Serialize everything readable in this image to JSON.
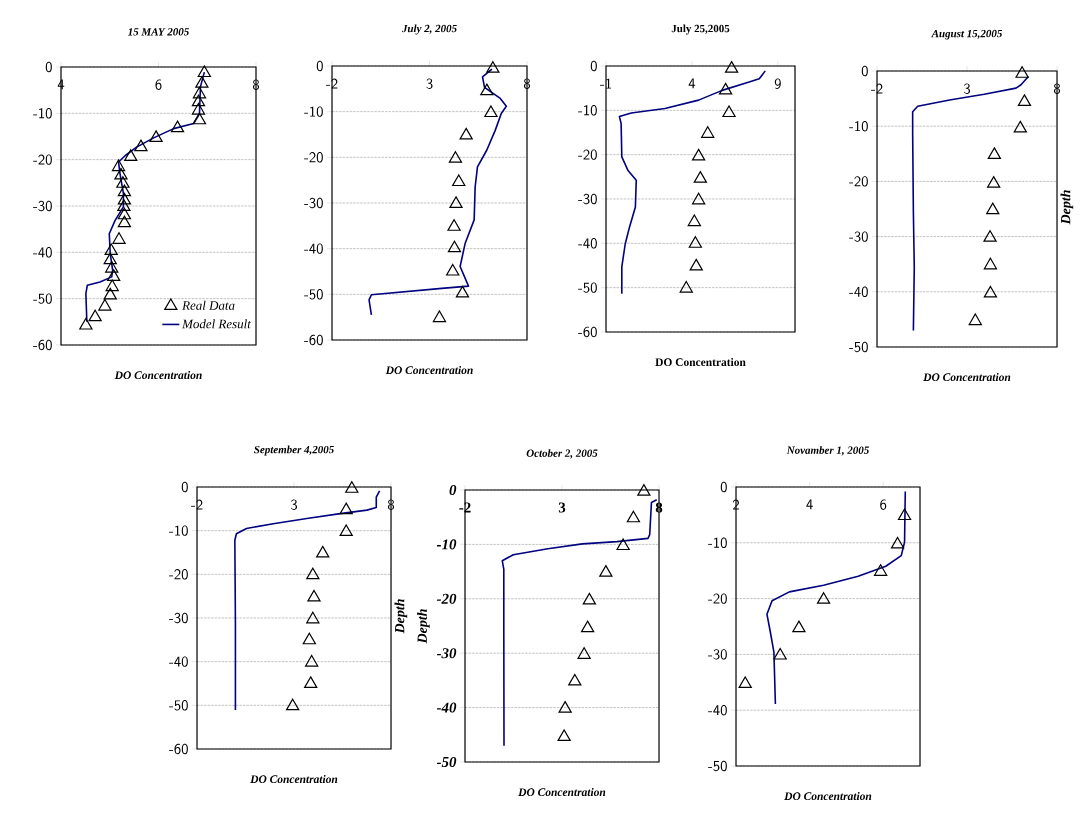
{
  "chart_data": [
    {
      "type": "scatter",
      "title": "15 MAY 2005",
      "xlabel": "DO Concentration",
      "xlim": [
        4,
        8
      ],
      "xticks": [
        4,
        6,
        8
      ],
      "ylim": [
        -60,
        0
      ],
      "yticks": [
        -60,
        -50,
        -40,
        -30,
        -20,
        -10,
        0
      ],
      "grid": "y",
      "legend": "bottom right",
      "series": [
        {
          "name": "Real Data",
          "marker": "triangle",
          "color": "#000000",
          "x": [
            6.94,
            6.89,
            6.84,
            6.82,
            6.82,
            6.84,
            6.39,
            5.95,
            5.64,
            5.43,
            5.18,
            5.23,
            5.27,
            5.3,
            5.3,
            5.29,
            5.3,
            5.3,
            5.19,
            5.03,
            5.01,
            5.04,
            5.08,
            5.05,
            5.01,
            4.9,
            4.7,
            4.51
          ],
          "values": [
            -1.3,
            -3.6,
            -5.9,
            -7.6,
            -9.4,
            -11.5,
            -13.2,
            -15.3,
            -17.3,
            -19.4,
            -21.6,
            -23.4,
            -25.2,
            -27,
            -28.8,
            -30.2,
            -32,
            -33.7,
            -37.3,
            -39.7,
            -41.7,
            -43.5,
            -45.3,
            -47.5,
            -49.3,
            -51.7,
            -54,
            -55.8
          ]
        },
        {
          "name": "Model Result",
          "type": "line",
          "color": "#000080",
          "x": [
            6.94,
            6.86,
            6.84,
            6.72,
            6.31,
            5.9,
            5.55,
            5.32,
            5.18,
            5.21,
            5.28,
            5.28,
            5.11,
            4.99,
            5.01,
            5.06,
            5.04,
            4.8,
            4.54,
            4.51,
            4.53
          ],
          "values": [
            -1.1,
            -4.3,
            -10.1,
            -12.2,
            -13.3,
            -15.3,
            -17.3,
            -19.1,
            -20.5,
            -23,
            -27.3,
            -30.2,
            -33.1,
            -36,
            -40.3,
            -43.9,
            -45.3,
            -46.4,
            -47.1,
            -48.9,
            -55
          ]
        }
      ]
    },
    {
      "type": "scatter",
      "title": "July 2, 2005",
      "xlabel": "DO Concentration",
      "xlim": [
        -2,
        8
      ],
      "xticks": [
        -2,
        3,
        8
      ],
      "ylim": [
        -60,
        0
      ],
      "yticks": [
        -60,
        -50,
        -40,
        -30,
        -20,
        -10,
        0
      ],
      "grid": "y",
      "series": [
        {
          "marker": "triangle",
          "color": "#000000",
          "x": [
            6.25,
            5.94,
            6.15,
            4.88,
            4.33,
            4.5,
            4.36,
            4.26,
            4.28,
            4.19,
            4.69,
            3.51
          ],
          "values": [
            -0.6,
            -5.5,
            -10.3,
            -15.2,
            -20.3,
            -25.4,
            -30.2,
            -35.2,
            -39.9,
            -45,
            -49.8,
            -55.2
          ]
        },
        {
          "type": "line",
          "color": "#000080",
          "x": [
            6.2,
            5.72,
            5.82,
            6.63,
            6.94,
            6.68,
            6.37,
            5.94,
            5.46,
            5.34,
            5.29,
            4.83,
            4.57,
            5.0,
            3.63,
            0.02,
            -0.1,
            0.02
          ],
          "values": [
            -0.7,
            -2.4,
            -4.7,
            -7.1,
            -8.8,
            -10.4,
            -14.1,
            -18.4,
            -22.1,
            -26.5,
            -33.7,
            -38.8,
            -43.9,
            -48.2,
            -48.7,
            -50.1,
            -51.2,
            -54.5
          ]
        }
      ]
    },
    {
      "type": "scatter",
      "title": "July 25,2005",
      "xlabel": "DO Concentration",
      "xlim": [
        -1,
        10
      ],
      "xticks": [
        -1,
        4,
        9
      ],
      "ylim": [
        -60,
        0
      ],
      "yticks": [
        -60,
        -50,
        -40,
        -30,
        -20,
        -10,
        0
      ],
      "grid": "y",
      "series": [
        {
          "marker": "triangle",
          "color": "#000000",
          "x": [
            6.31,
            5.96,
            6.16,
            4.92,
            4.39,
            4.49,
            4.39,
            4.14,
            4.2,
            4.25,
            3.67
          ],
          "values": [
            -0.6,
            -5.5,
            -10.6,
            -15.3,
            -20.4,
            -25.4,
            -30.3,
            -35.2,
            -40.1,
            -45.2,
            -50.2
          ]
        },
        {
          "type": "line",
          "color": "#000080",
          "x": [
            8.27,
            7.92,
            7.33,
            5.76,
            4.39,
            2.43,
            0.47,
            -0.22,
            -0.12,
            -0.08,
            0.27,
            0.76,
            0.71,
            0.37,
            0.12,
            -0.08,
            -0.08
          ],
          "values": [
            -1.1,
            -2.9,
            -3.6,
            -5.5,
            -7.7,
            -9.6,
            -10.6,
            -11.4,
            -13,
            -20.5,
            -23.5,
            -25.8,
            -31.8,
            -36.3,
            -40.1,
            -45.3,
            -51.4
          ]
        }
      ]
    },
    {
      "type": "scatter",
      "title": "August 15,2005",
      "xlabel": "DO Concentration",
      "ylabel": "Depth",
      "xlim": [
        -2,
        8
      ],
      "xticks": [
        -2,
        3,
        8
      ],
      "ylim": [
        -50,
        0
      ],
      "yticks": [
        -50,
        -40,
        -30,
        -20,
        -10,
        0
      ],
      "grid": "y",
      "series": [
        {
          "marker": "triangle",
          "color": "#000000",
          "x": [
            6.06,
            6.19,
            5.96,
            4.52,
            4.48,
            4.43,
            4.28,
            4.3,
            4.3,
            3.46
          ],
          "values": [
            -0.5,
            -5.6,
            -10.4,
            -15.2,
            -20.4,
            -25.2,
            -30.2,
            -35.2,
            -40.3,
            -45.3
          ]
        },
        {
          "type": "line",
          "color": "#000080",
          "x": [
            6.41,
            6.0,
            5.72,
            3.96,
            2.11,
            0.26,
            -0.02,
            -0.02,
            0.02,
            0.07,
            0.02
          ],
          "values": [
            -1.0,
            -2.5,
            -3.1,
            -4.2,
            -5.2,
            -6.4,
            -7.4,
            -11.3,
            -25.5,
            -35.6,
            -47.0
          ]
        }
      ]
    },
    {
      "type": "scatter",
      "title": "September  4,2005",
      "xlabel": "DO  Concentration",
      "ylabel": "Depth",
      "xlim": [
        -2,
        8
      ],
      "xticks": [
        -2,
        3,
        8
      ],
      "ylim": [
        -60,
        0
      ],
      "yticks": [
        -60,
        -50,
        -40,
        -30,
        -20,
        -10,
        0
      ],
      "grid": "y",
      "series": [
        {
          "marker": "triangle",
          "color": "#000000",
          "x": [
            5.98,
            5.69,
            5.69,
            4.48,
            3.97,
            4.03,
            3.97,
            3.79,
            3.91,
            3.86,
            2.93
          ],
          "values": [
            -0.4,
            -5.3,
            -10.3,
            -15.2,
            -20.2,
            -25.3,
            -30.3,
            -35.1,
            -40.2,
            -45.1,
            -50.2
          ]
        },
        {
          "type": "line",
          "color": "#000080",
          "x": [
            7.41,
            7.24,
            7.24,
            6.76,
            5.38,
            3.66,
            1.93,
            0.55,
            0.03,
            -0.05,
            -0.02,
            -0.02
          ],
          "values": [
            -0.9,
            -2.3,
            -4.7,
            -5.3,
            -6.1,
            -7.2,
            -8.4,
            -9.5,
            -10.7,
            -12.2,
            -31.3,
            -51.1
          ]
        }
      ]
    },
    {
      "type": "scatter",
      "title": "October 2, 2005",
      "xlabel": "DO  Concentration",
      "ylabel": "Depth",
      "xlim": [
        -2,
        8
      ],
      "xticks": [
        -2,
        3,
        8
      ],
      "ylim": [
        -50,
        0
      ],
      "yticks": [
        -50,
        -40,
        -30,
        -20,
        -10,
        0
      ],
      "grid": "y",
      "series": [
        {
          "marker": "triangle",
          "color": "#000000",
          "x": [
            7.22,
            6.68,
            6.15,
            5.26,
            4.41,
            4.32,
            4.14,
            3.66,
            3.16,
            3.11
          ],
          "values": [
            -0.3,
            -5.2,
            -10.3,
            -15.2,
            -20.3,
            -25.4,
            -30.3,
            -35.2,
            -40.2,
            -45.4
          ]
        },
        {
          "type": "line",
          "color": "#000080",
          "x": [
            7.88,
            7.61,
            7.52,
            7.43,
            5.83,
            4.05,
            2.27,
            0.49,
            -0.08,
            0,
            0,
            0.01
          ],
          "values": [
            -1.8,
            -2.3,
            -8.2,
            -8.9,
            -9.5,
            -9.9,
            -10.8,
            -11.9,
            -13.0,
            -14.6,
            -26,
            -47
          ]
        }
      ]
    },
    {
      "type": "scatter",
      "title": "Novamber 1, 2005",
      "xlabel": "DO Concentration",
      "xlim": [
        2,
        7
      ],
      "xticks": [
        2,
        4,
        6
      ],
      "ylim": [
        -50,
        0
      ],
      "yticks": [
        -50,
        -40,
        -30,
        -20,
        -10,
        0
      ],
      "grid": "y",
      "series": [
        {
          "marker": "triangle",
          "color": "#000000",
          "x": [
            6.58,
            6.39,
            5.93,
            4.38,
            3.71,
            3.2,
            2.25
          ],
          "values": [
            -5.2,
            -10.3,
            -15.2,
            -20.2,
            -25.3,
            -30.2,
            -35.3
          ]
        },
        {
          "type": "line",
          "color": "#000080",
          "x": [
            6.6,
            6.58,
            6.49,
            6.07,
            5.32,
            4.38,
            3.45,
            2.98,
            2.84,
            2.93,
            3.03,
            3.07
          ],
          "values": [
            -0.8,
            -9.9,
            -12.3,
            -14.2,
            -16.0,
            -17.6,
            -18.8,
            -20.4,
            -22.8,
            -25.9,
            -29.6,
            -38.9
          ]
        }
      ]
    }
  ]
}
